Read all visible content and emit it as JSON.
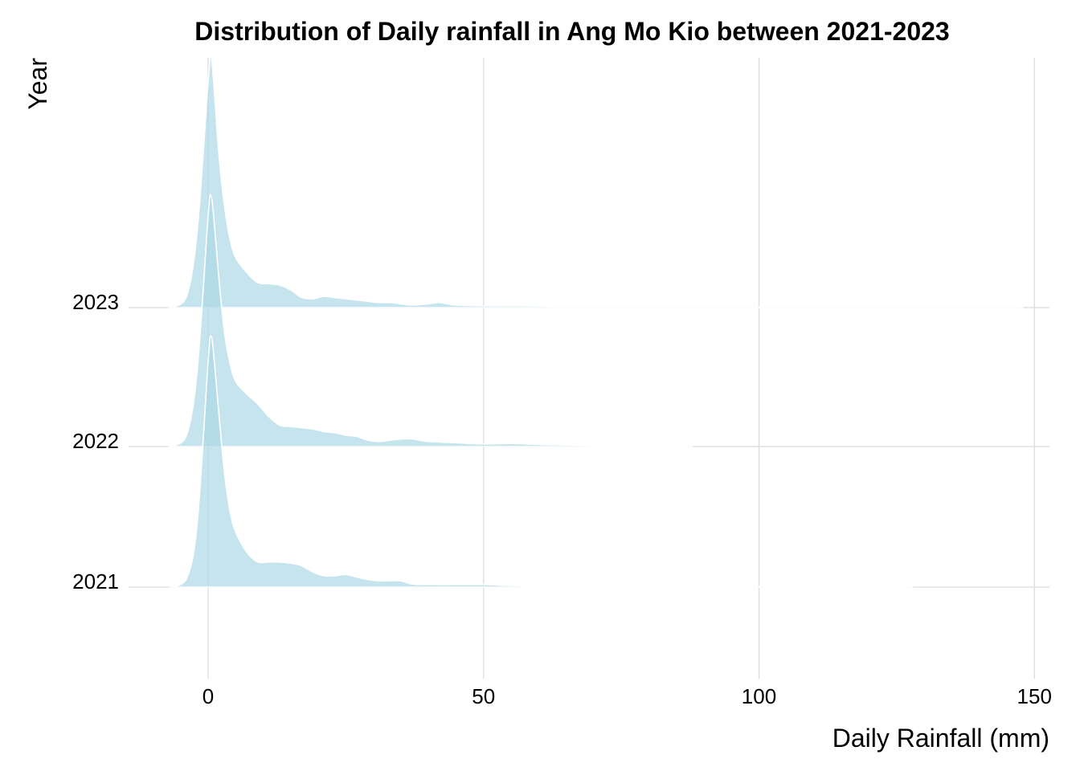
{
  "chart_data": {
    "type": "area",
    "subtype": "ridgeline-density",
    "title": "Distribution of Daily rainfall in Ang Mo Kio between 2021-2023",
    "xlabel": "Daily Rainfall (mm)",
    "ylabel": "Year",
    "xlim": [
      -15,
      153
    ],
    "x_ticks": [
      0,
      50,
      100,
      150
    ],
    "x_tick_labels": [
      "0",
      "50",
      "100",
      "150"
    ],
    "categories": [
      "2021",
      "2022",
      "2023"
    ],
    "grid": true,
    "legend": "none",
    "fill_color": "#add8e6",
    "fill_opacity": 0.7,
    "outline_color": "#ffffff",
    "series": [
      {
        "name": "2021",
        "x": [
          -7,
          -4,
          -2,
          0,
          0.5,
          1,
          2,
          3,
          4,
          5,
          7,
          9,
          11,
          13,
          15,
          17,
          19,
          21,
          23,
          25,
          27,
          29,
          31,
          33,
          35,
          37,
          40,
          45,
          50,
          55,
          60,
          70,
          80,
          90,
          100,
          110,
          120,
          128
        ],
        "density": [
          0,
          0.03,
          0.25,
          0.9,
          1.0,
          0.93,
          0.68,
          0.45,
          0.3,
          0.22,
          0.14,
          0.1,
          0.1,
          0.1,
          0.095,
          0.085,
          0.06,
          0.045,
          0.045,
          0.05,
          0.04,
          0.03,
          0.025,
          0.025,
          0.025,
          0.012,
          0.01,
          0.01,
          0.01,
          0.006,
          0.004,
          0.004,
          0.003,
          0.003,
          0.002,
          0.002,
          0.002,
          0
        ]
      },
      {
        "name": "2022",
        "x": [
          -7,
          -4,
          -2,
          0,
          0.5,
          1,
          2,
          3,
          4,
          5,
          7,
          9,
          11,
          13,
          15,
          17,
          19,
          21,
          23,
          25,
          27,
          29,
          31,
          33,
          35,
          37,
          40,
          45,
          50,
          55,
          60,
          65,
          70,
          75,
          80,
          88
        ],
        "density": [
          0,
          0.04,
          0.3,
          0.92,
          1.0,
          0.92,
          0.66,
          0.45,
          0.33,
          0.26,
          0.21,
          0.17,
          0.12,
          0.085,
          0.08,
          0.075,
          0.07,
          0.06,
          0.055,
          0.045,
          0.04,
          0.025,
          0.02,
          0.025,
          0.03,
          0.03,
          0.02,
          0.015,
          0.01,
          0.012,
          0.008,
          0.006,
          0.005,
          0.004,
          0.003,
          0
        ]
      },
      {
        "name": "2023",
        "x": [
          -7,
          -4,
          -2,
          0,
          0.5,
          1,
          2,
          3,
          4,
          5,
          7,
          9,
          11,
          13,
          15,
          17,
          19,
          21,
          23,
          25,
          27,
          29,
          31,
          33,
          35,
          37,
          40,
          42,
          45,
          50,
          55,
          60,
          65,
          70,
          75,
          80,
          90,
          100,
          120,
          140,
          148
        ],
        "density": [
          0,
          0.04,
          0.3,
          0.9,
          1.0,
          0.9,
          0.6,
          0.4,
          0.27,
          0.2,
          0.14,
          0.1,
          0.095,
          0.09,
          0.07,
          0.04,
          0.035,
          0.045,
          0.04,
          0.035,
          0.03,
          0.025,
          0.02,
          0.02,
          0.015,
          0.01,
          0.015,
          0.02,
          0.01,
          0.007,
          0.007,
          0.006,
          0.004,
          0.005,
          0.003,
          0.003,
          0.003,
          0.002,
          0.002,
          0.002,
          0
        ]
      }
    ]
  }
}
